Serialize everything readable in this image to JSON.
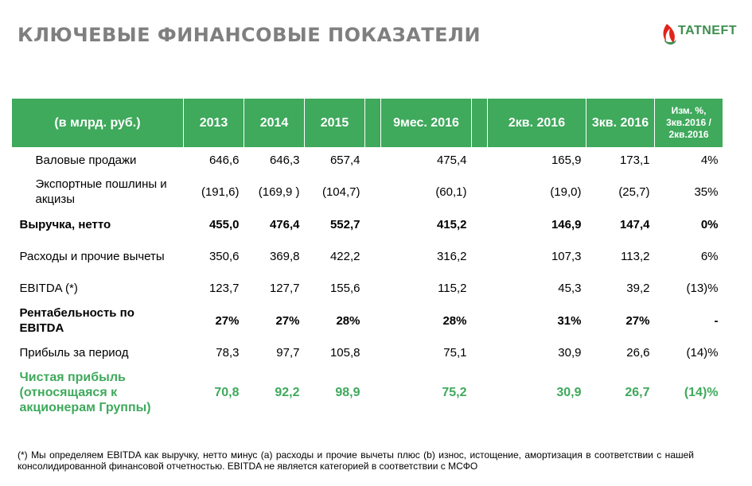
{
  "title": "КЛЮЧЕВЫЕ ФИНАНСОВЫЕ ПОКАЗАТЕЛИ",
  "logo": {
    "text": "TATNEFT",
    "accent": "#e2231a",
    "brand": "#3e8e4f"
  },
  "colors": {
    "header_bg": "#3fa95c",
    "title": "#7f7f7f",
    "highlight": "#3fa95c"
  },
  "table": {
    "headers": [
      "(в млрд. руб.)",
      "2013",
      "2014",
      "2015",
      "",
      "9мес. 2016",
      "",
      "2кв. 2016",
      "3кв. 2016",
      "Изм. %, 3кв.2016 / 2кв.2016"
    ],
    "rows": [
      {
        "label": "Валовые продажи",
        "values": [
          "646,6",
          "646,3",
          "657,4",
          "475,4",
          "165,9",
          "173,1",
          "4%"
        ]
      },
      {
        "label": "Экспортные пошлины и акцизы",
        "values": [
          "(191,6)",
          "(169,9 )",
          "(104,7)",
          "(60,1)",
          "(19,0)",
          "(25,7)",
          "35%"
        ]
      },
      {
        "label": "Выручка, нетто",
        "values": [
          "455,0",
          "476,4",
          "552,7",
          "415,2",
          "146,9",
          "147,4",
          "0%"
        ]
      },
      {
        "label": "Расходы и прочие вычеты",
        "values": [
          "350,6",
          "369,8",
          "422,2",
          "316,2",
          "107,3",
          "113,2",
          "6%"
        ]
      },
      {
        "label": "EBITDA (*)",
        "values": [
          "123,7",
          "127,7",
          "155,6",
          "115,2",
          "45,3",
          "39,2",
          "(13)%"
        ]
      },
      {
        "label": "Рентабельность по EBITDA",
        "values": [
          "27%",
          "27%",
          "28%",
          "28%",
          "31%",
          "27%",
          "-"
        ]
      },
      {
        "label": "Прибыль за период",
        "values": [
          "78,3",
          "97,7",
          "105,8",
          "75,1",
          "30,9",
          "26,6",
          "(14)%"
        ]
      },
      {
        "label": "Чистая прибыль (относящаяся к акционерам Группы)",
        "values": [
          "70,8",
          "92,2",
          "98,9",
          "75,2",
          "30,9",
          "26,7",
          "(14)%"
        ]
      }
    ]
  },
  "footnote": "(*) Мы определяем EBITDA как выручку, нетто минус (а) расходы и прочие вычеты плюс (b) износ, истощение, амортизация в соответствии с нашей консолидированной финансовой отчетностью. EBITDA не является категорией в соответствии с МСФО"
}
